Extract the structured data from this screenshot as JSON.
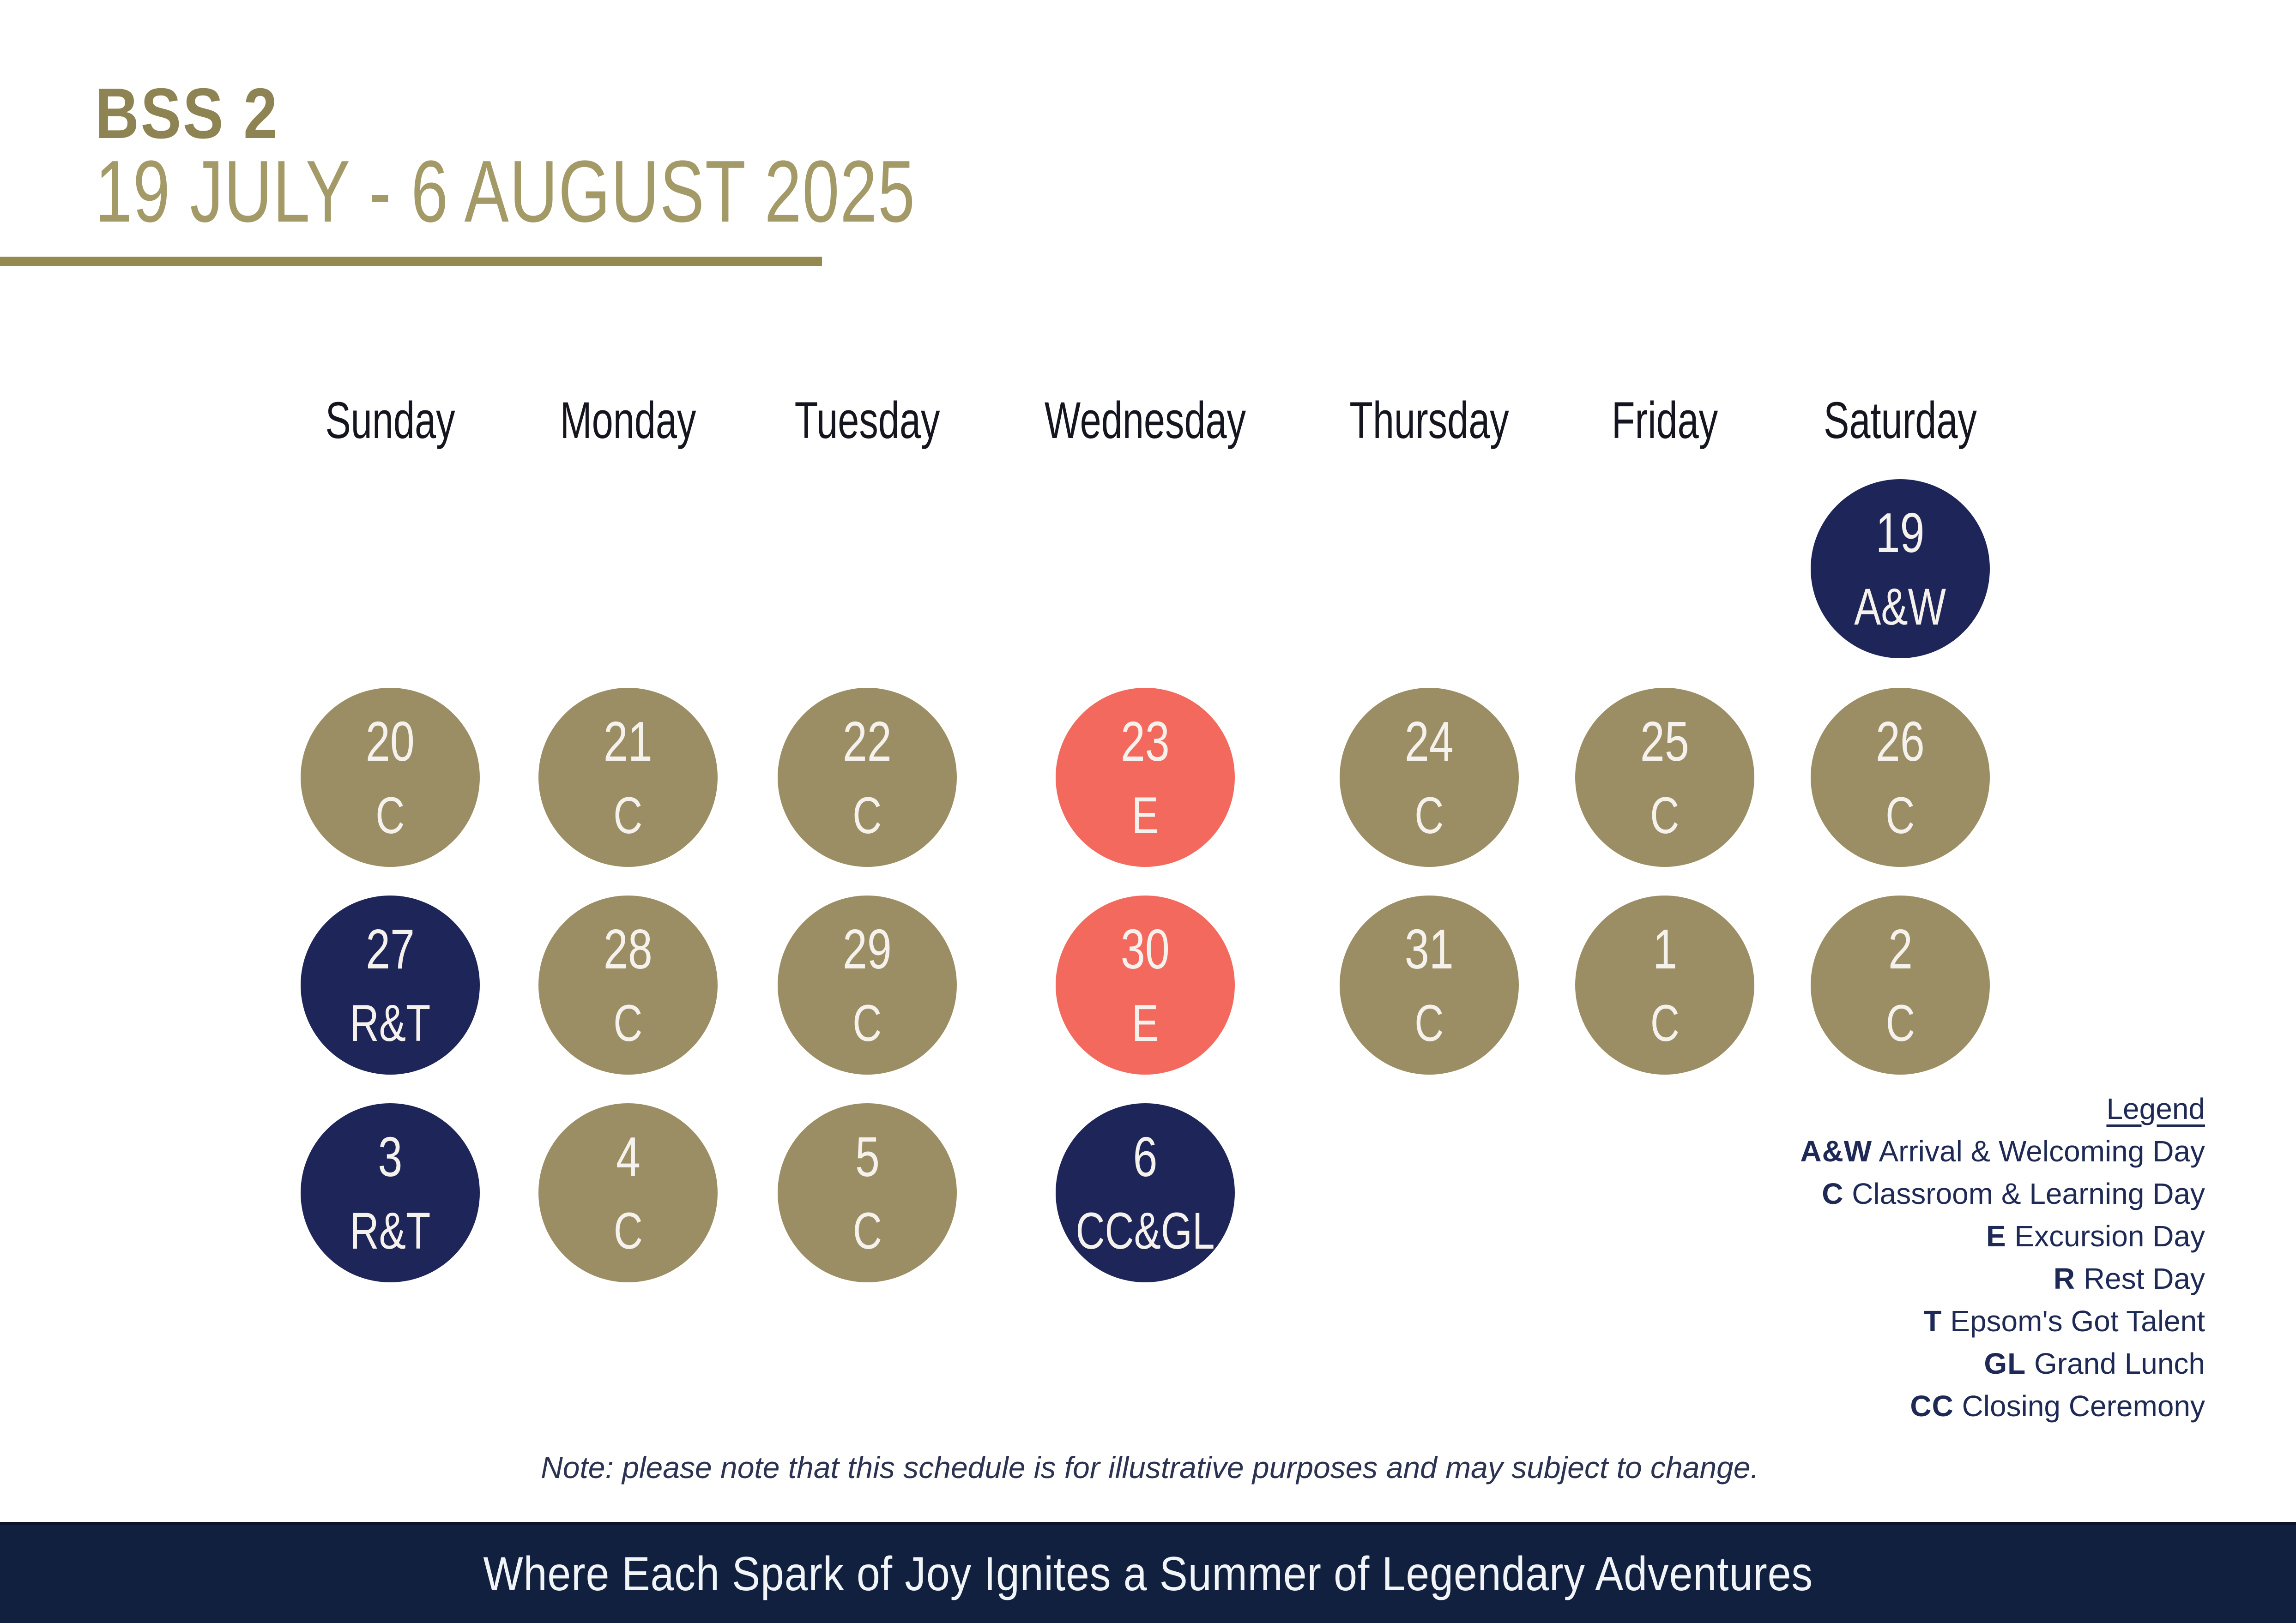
{
  "header": {
    "title": "BSS 2",
    "date_range": "19 JULY - 6 AUGUST 2025"
  },
  "calendar": {
    "day_headers": [
      "Sunday",
      "Monday",
      "Tuesday",
      "Wednesday",
      "Thursday",
      "Friday",
      "Saturday"
    ],
    "weeks": [
      [
        null,
        null,
        null,
        null,
        null,
        null,
        {
          "date": "19",
          "code": "A&W",
          "type": "navy"
        }
      ],
      [
        {
          "date": "20",
          "code": "C",
          "type": "gold"
        },
        {
          "date": "21",
          "code": "C",
          "type": "gold"
        },
        {
          "date": "22",
          "code": "C",
          "type": "gold"
        },
        {
          "date": "23",
          "code": "E",
          "type": "coral"
        },
        {
          "date": "24",
          "code": "C",
          "type": "gold"
        },
        {
          "date": "25",
          "code": "C",
          "type": "gold"
        },
        {
          "date": "26",
          "code": "C",
          "type": "gold"
        }
      ],
      [
        {
          "date": "27",
          "code": "R&T",
          "type": "navy"
        },
        {
          "date": "28",
          "code": "C",
          "type": "gold"
        },
        {
          "date": "29",
          "code": "C",
          "type": "gold"
        },
        {
          "date": "30",
          "code": "E",
          "type": "coral"
        },
        {
          "date": "31",
          "code": "C",
          "type": "gold"
        },
        {
          "date": "1",
          "code": "C",
          "type": "gold"
        },
        {
          "date": "2",
          "code": "C",
          "type": "gold"
        }
      ],
      [
        {
          "date": "3",
          "code": "R&T",
          "type": "navy"
        },
        {
          "date": "4",
          "code": "C",
          "type": "gold"
        },
        {
          "date": "5",
          "code": "C",
          "type": "gold"
        },
        {
          "date": "6",
          "code": "CC&GL",
          "type": "navy"
        },
        null,
        null,
        null
      ]
    ]
  },
  "legend": {
    "title": "Legend",
    "entries": [
      {
        "code": "A&W",
        "label": "Arrival & Welcoming Day"
      },
      {
        "code": "C",
        "label": "Classroom & Learning Day"
      },
      {
        "code": "E",
        "label": "Excursion Day"
      },
      {
        "code": "R",
        "label": "Rest Day"
      },
      {
        "code": "T",
        "label": "Epsom's Got Talent"
      },
      {
        "code": "GL",
        "label": "Grand Lunch"
      },
      {
        "code": "CC",
        "label": "Closing Ceremony"
      }
    ]
  },
  "note": "Note: please note that this schedule is for illustrative purposes and may subject to change.",
  "footer": "Where Each Spark of Joy Ignites a Summer of Legendary Adventures",
  "colors": {
    "navy": "#1e2558",
    "gold": "#9c8e64",
    "coral": "#f3695d",
    "circle_text": "#f5f1ec",
    "title_gold": "#8e8352",
    "subtitle_gold": "#a39a67",
    "rule_gold": "#95894f",
    "footer_bar": "#12203f",
    "footer_text": "#f2f5f8",
    "legend_navy": "#1e2a55"
  }
}
